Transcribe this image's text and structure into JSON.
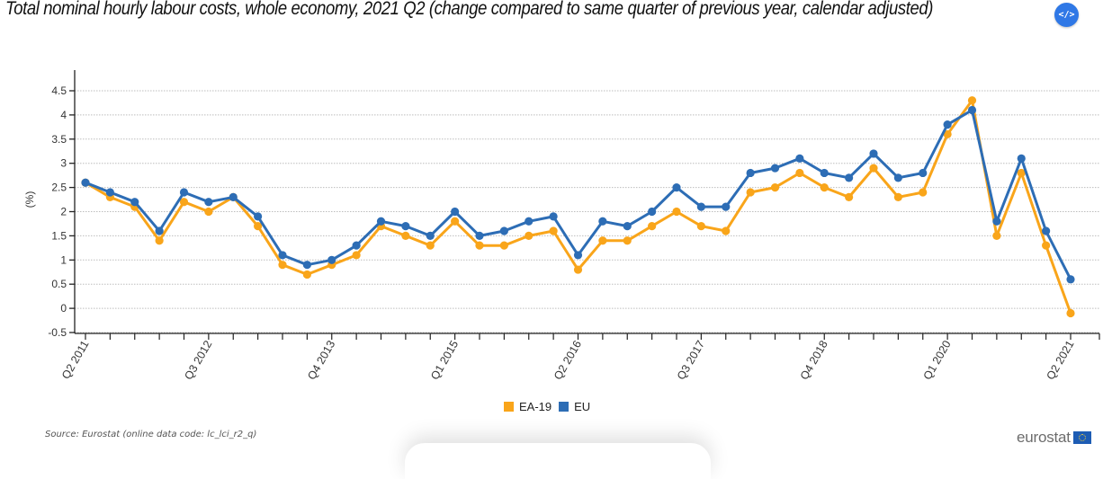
{
  "header": {
    "title": "Total nominal hourly labour costs, whole economy, 2021 Q2 (change compared to same quarter of previous year, calendar adjusted)",
    "embed_button_label": "</>",
    "embed_button_icon": "code-embed-icon"
  },
  "footer": {
    "source": "Source: Eurostat (online data code: lc_lci_r2_q)",
    "logo_text": "eurostat",
    "logo_icon": "eu-flag-icon"
  },
  "chart_data": {
    "type": "line",
    "title": "Total nominal hourly labour costs, whole economy, 2021 Q2 (change compared to same quarter of previous year, calendar adjusted)",
    "xlabel": "",
    "ylabel": "(%)",
    "ylim": [
      -0.5,
      4.5
    ],
    "yticks": [
      -0.5,
      0,
      0.5,
      1,
      1.5,
      2,
      2.5,
      3,
      3.5,
      4,
      4.5
    ],
    "ytick_labels": [
      "-0.5",
      "0",
      "0.5",
      "1",
      "1.5",
      "2",
      "2.5",
      "3",
      "3.5",
      "4",
      "4.5"
    ],
    "grid": true,
    "legend_position": "bottom-center",
    "x": [
      "Q2 2011",
      "Q3 2011",
      "Q4 2011",
      "Q1 2012",
      "Q2 2012",
      "Q3 2012",
      "Q4 2012",
      "Q1 2013",
      "Q2 2013",
      "Q3 2013",
      "Q4 2013",
      "Q1 2014",
      "Q2 2014",
      "Q3 2014",
      "Q4 2014",
      "Q1 2015",
      "Q2 2015",
      "Q3 2015",
      "Q4 2015",
      "Q1 2016",
      "Q2 2016",
      "Q3 2016",
      "Q4 2016",
      "Q1 2017",
      "Q2 2017",
      "Q3 2017",
      "Q4 2017",
      "Q1 2018",
      "Q2 2018",
      "Q3 2018",
      "Q4 2018",
      "Q1 2019",
      "Q2 2019",
      "Q3 2019",
      "Q4 2019",
      "Q1 2020",
      "Q2 2020",
      "Q3 2020",
      "Q4 2020",
      "Q1 2021",
      "Q2 2021"
    ],
    "xtick_labels": [
      "Q2 2011",
      "Q3 2012",
      "Q4 2013",
      "Q1 2015",
      "Q2 2016",
      "Q3 2017",
      "Q4 2018",
      "Q1 2020",
      "Q2 2021"
    ],
    "series": [
      {
        "name": "EA-19",
        "color": "#f9a51a",
        "values": [
          2.6,
          2.3,
          2.1,
          1.4,
          2.2,
          2.0,
          2.3,
          1.7,
          0.9,
          0.7,
          0.9,
          1.1,
          1.7,
          1.5,
          1.3,
          1.8,
          1.3,
          1.3,
          1.5,
          1.6,
          0.8,
          1.4,
          1.4,
          1.7,
          2.0,
          1.7,
          1.6,
          2.4,
          2.5,
          2.8,
          2.5,
          2.3,
          2.9,
          2.3,
          2.4,
          3.6,
          4.3,
          1.5,
          2.8,
          1.3,
          -0.1
        ]
      },
      {
        "name": "EU",
        "color": "#2d6db5",
        "values": [
          2.6,
          2.4,
          2.2,
          1.6,
          2.4,
          2.2,
          2.3,
          1.9,
          1.1,
          0.9,
          1.0,
          1.3,
          1.8,
          1.7,
          1.5,
          2.0,
          1.5,
          1.6,
          1.8,
          1.9,
          1.1,
          1.8,
          1.7,
          2.0,
          2.5,
          2.1,
          2.1,
          2.8,
          2.9,
          3.1,
          2.8,
          2.7,
          3.2,
          2.7,
          2.8,
          3.8,
          4.1,
          1.8,
          3.1,
          1.6,
          0.6
        ]
      }
    ]
  }
}
